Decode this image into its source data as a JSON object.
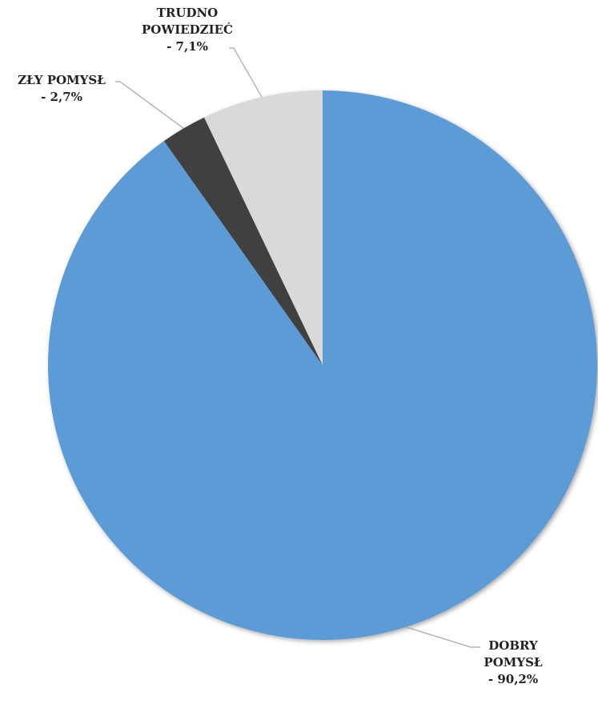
{
  "chart_data": {
    "type": "pie",
    "title": "",
    "legend": "none",
    "slices": [
      {
        "name": "DOBRY POMYSŁ",
        "value": 90.2,
        "color": "#5b9bd5",
        "label_lines": [
          "DOBRY",
          "POMYSŁ",
          "- 90,2%"
        ]
      },
      {
        "name": "ZŁY POMYSŁ",
        "value": 2.7,
        "color": "#404040",
        "label_lines": [
          "ZŁY POMYSŁ",
          "- 2,7%"
        ]
      },
      {
        "name": "TRUDNO POWIEDZIEĆ",
        "value": 7.1,
        "color": "#d9d9d9",
        "label_lines": [
          "TRUDNO",
          "POWIEDZIEĆ",
          "- 7,1%"
        ]
      }
    ]
  }
}
